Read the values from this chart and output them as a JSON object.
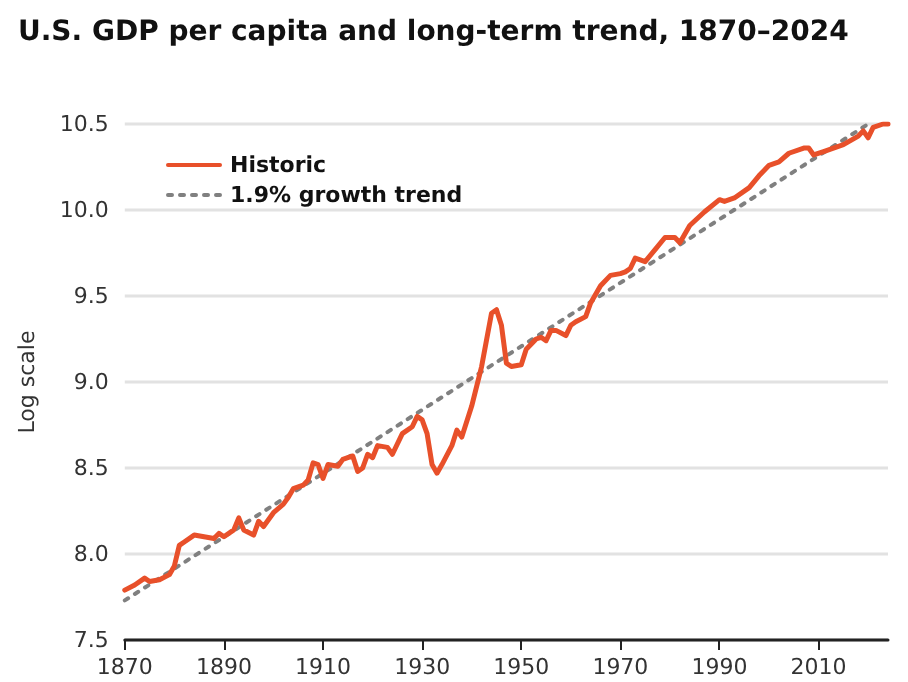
{
  "chart_data": {
    "type": "line",
    "title": "U.S. GDP per capita and long-term trend, 1870–2024",
    "ylabel": "Log scale",
    "xlim": [
      1870,
      2024
    ],
    "xticks": [
      1870,
      1890,
      1910,
      1930,
      1950,
      1970,
      1990,
      2010
    ],
    "ylim": [
      7.5,
      10.5
    ],
    "yticks": [
      7.5,
      {
        "value": 8,
        "label": "8.0"
      },
      8.5,
      {
        "value": 9,
        "label": "9.0"
      },
      9.5,
      {
        "value": 10,
        "label": "10.0"
      },
      10.5
    ],
    "grid": "y",
    "legend": "top left",
    "marker": "none",
    "series": [
      {
        "name": "Historic",
        "color": "#e8502a",
        "line_style": "solid",
        "x": [
          1870,
          1872,
          1874,
          1875,
          1877,
          1879,
          1880,
          1881,
          1882,
          1884,
          1886,
          1888,
          1889,
          1890,
          1892,
          1893,
          1894,
          1896,
          1897,
          1898,
          1900,
          1902,
          1903,
          1904,
          1905,
          1906,
          1907,
          1908,
          1909,
          1910,
          1911,
          1913,
          1914,
          1916,
          1917,
          1918,
          1919,
          1920,
          1921,
          1923,
          1924,
          1926,
          1928,
          1929,
          1930,
          1931,
          1932,
          1933,
          1934,
          1936,
          1937,
          1938,
          1940,
          1942,
          1944,
          1945,
          1946,
          1947,
          1948,
          1950,
          1951,
          1953,
          1954,
          1955,
          1956,
          1957,
          1959,
          1960,
          1961,
          1963,
          1964,
          1966,
          1968,
          1970,
          1971,
          1972,
          1973,
          1974,
          1975,
          1977,
          1979,
          1980,
          1981,
          1982,
          1984,
          1987,
          1990,
          1991,
          1993,
          1996,
          1998,
          2000,
          2002,
          2004,
          2007,
          2008,
          2009,
          2011,
          2015,
          2018,
          2019,
          2020,
          2021,
          2023,
          2024
        ],
        "values": [
          7.79,
          7.82,
          7.86,
          7.84,
          7.85,
          7.88,
          7.93,
          8.05,
          8.07,
          8.11,
          8.1,
          8.09,
          8.12,
          8.1,
          8.14,
          8.21,
          8.14,
          8.11,
          8.19,
          8.16,
          8.24,
          8.29,
          8.33,
          8.38,
          8.39,
          8.4,
          8.43,
          8.53,
          8.52,
          8.44,
          8.52,
          8.51,
          8.55,
          8.57,
          8.48,
          8.5,
          8.58,
          8.56,
          8.63,
          8.62,
          8.58,
          8.7,
          8.74,
          8.8,
          8.78,
          8.7,
          8.52,
          8.47,
          8.52,
          8.63,
          8.72,
          8.68,
          8.86,
          9.09,
          9.4,
          9.42,
          9.33,
          9.11,
          9.09,
          9.1,
          9.19,
          9.25,
          9.26,
          9.24,
          9.3,
          9.3,
          9.27,
          9.33,
          9.35,
          9.38,
          9.46,
          9.56,
          9.62,
          9.63,
          9.64,
          9.66,
          9.72,
          9.71,
          9.7,
          9.77,
          9.84,
          9.84,
          9.84,
          9.81,
          9.91,
          9.99,
          10.06,
          10.05,
          10.07,
          10.13,
          10.2,
          10.26,
          10.28,
          10.33,
          10.36,
          10.36,
          10.32,
          10.34,
          10.38,
          10.43,
          10.46,
          10.42,
          10.48,
          10.5,
          10.5
        ]
      },
      {
        "name": "1.9% growth trend",
        "color": "#808080",
        "line_style": "dotted",
        "x": [
          1870,
          2020
        ],
        "values": [
          7.73,
          10.5
        ]
      }
    ]
  }
}
